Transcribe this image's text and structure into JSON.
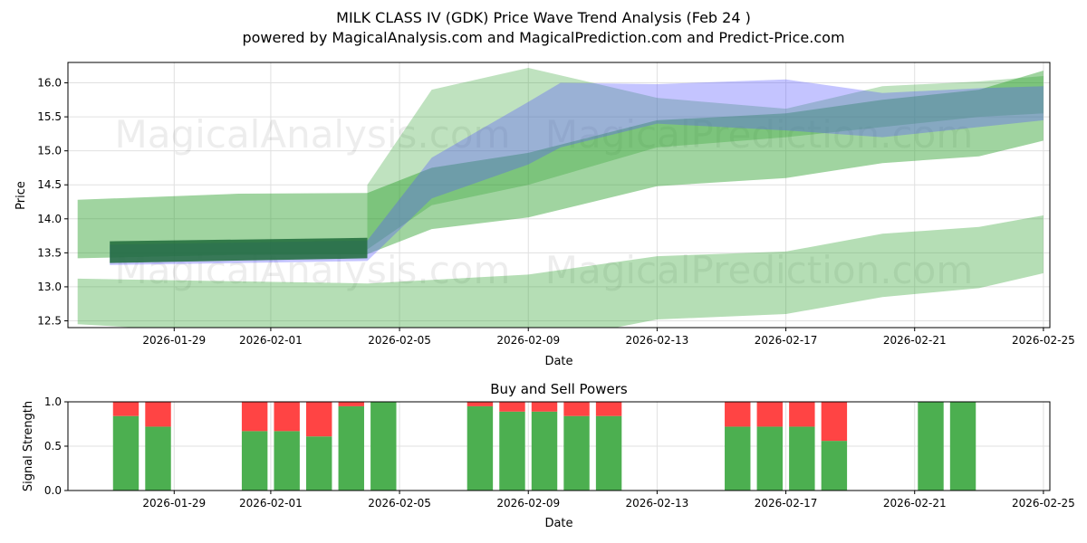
{
  "header": {
    "title": "MILK CLASS IV (GDK) Price Wave Trend Analysis (Feb 24 )",
    "subtitle": "powered by MagicalAnalysis.com and MagicalPrediction.com and Predict-Price.com"
  },
  "watermarks": [
    "MagicalAnalysis.com",
    "MagicalPrediction.com"
  ],
  "colors": {
    "green_band": "#2ca02c",
    "green_dark": "#1e6b3a",
    "blue_band": "#5555ff",
    "buy": "#4caf50",
    "sell": "#ff4444",
    "grid": "#e0e0e0"
  },
  "chart_data": [
    {
      "type": "area",
      "title": "",
      "xlabel": "Date",
      "ylabel": "Price",
      "x_range": [
        "2026-01-26",
        "2026-02-25"
      ],
      "ylim": [
        12.4,
        16.3
      ],
      "x_ticks": [
        "2026-01-29",
        "2026-02-01",
        "2026-02-05",
        "2026-02-09",
        "2026-02-13",
        "2026-02-17",
        "2026-02-21",
        "2026-02-25"
      ],
      "y_ticks": [
        12.5,
        13.0,
        13.5,
        14.0,
        14.5,
        15.0,
        15.5,
        16.0
      ],
      "grid": true,
      "series": [
        {
          "name": "lower green band",
          "color": "green",
          "opacity": 0.35,
          "x": [
            "2026-01-26",
            "2026-02-04",
            "2026-02-09",
            "2026-02-13",
            "2026-02-17",
            "2026-02-20",
            "2026-02-23",
            "2026-02-25"
          ],
          "upper": [
            13.12,
            13.05,
            13.18,
            13.45,
            13.52,
            13.78,
            13.88,
            14.05
          ],
          "lower": [
            12.45,
            12.2,
            12.15,
            12.52,
            12.6,
            12.85,
            12.98,
            13.2
          ]
        },
        {
          "name": "main green band",
          "color": "green",
          "opacity": 0.45,
          "x": [
            "2026-01-26",
            "2026-01-31",
            "2026-02-04",
            "2026-02-06",
            "2026-02-09",
            "2026-02-13",
            "2026-02-17",
            "2026-02-20",
            "2026-02-23",
            "2026-02-25"
          ],
          "upper": [
            14.28,
            14.37,
            14.38,
            14.75,
            14.97,
            15.45,
            15.55,
            15.75,
            15.9,
            16.18
          ],
          "lower": [
            13.42,
            13.47,
            13.48,
            13.85,
            14.02,
            14.48,
            14.6,
            14.82,
            14.92,
            15.15
          ]
        },
        {
          "name": "upper green band",
          "color": "green",
          "opacity": 0.3,
          "x": [
            "2026-02-04",
            "2026-02-06",
            "2026-02-09",
            "2026-02-13",
            "2026-02-17",
            "2026-02-20",
            "2026-02-23",
            "2026-02-25"
          ],
          "upper": [
            14.5,
            15.9,
            16.22,
            15.78,
            15.62,
            15.95,
            16.02,
            16.1
          ],
          "lower": [
            13.55,
            14.2,
            14.5,
            15.05,
            15.2,
            15.35,
            15.5,
            15.55
          ]
        },
        {
          "name": "blue wave band",
          "color": "blue",
          "opacity": 0.35,
          "x": [
            "2026-01-27",
            "2026-02-04",
            "2026-02-06",
            "2026-02-09",
            "2026-02-10",
            "2026-02-13",
            "2026-02-17",
            "2026-02-20",
            "2026-02-23",
            "2026-02-25"
          ],
          "upper": [
            13.62,
            13.68,
            14.9,
            15.72,
            16.0,
            15.98,
            16.05,
            15.85,
            15.92,
            15.95
          ],
          "lower": [
            13.32,
            13.38,
            14.3,
            14.8,
            15.05,
            15.4,
            15.3,
            15.2,
            15.35,
            15.45
          ]
        },
        {
          "name": "dark core band",
          "color": "dark green",
          "opacity": 0.85,
          "x": [
            "2026-01-27",
            "2026-02-04"
          ],
          "upper": [
            13.67,
            13.72
          ],
          "lower": [
            13.35,
            13.42
          ]
        }
      ]
    },
    {
      "type": "bar",
      "title": "Buy and Sell Powers",
      "xlabel": "Date",
      "ylabel": "Signal Strength",
      "ylim": [
        0.0,
        1.0
      ],
      "y_ticks": [
        0.0,
        0.5,
        1.0
      ],
      "x_ticks": [
        "2026-01-29",
        "2026-02-01",
        "2026-02-05",
        "2026-02-09",
        "2026-02-13",
        "2026-02-17",
        "2026-02-21",
        "2026-02-25"
      ],
      "grid": true,
      "categories": [
        "2026-01-28",
        "2026-01-29",
        "2026-02-01",
        "2026-02-02",
        "2026-02-03",
        "2026-02-04",
        "2026-02-05",
        "2026-02-08",
        "2026-02-09",
        "2026-02-10",
        "2026-02-11",
        "2026-02-12",
        "2026-02-16",
        "2026-02-17",
        "2026-02-18",
        "2026-02-19",
        "2026-02-22",
        "2026-02-23"
      ],
      "series": [
        {
          "name": "Buy",
          "color": "green",
          "values": [
            0.84,
            0.72,
            0.67,
            0.67,
            0.61,
            0.95,
            1.0,
            0.95,
            0.89,
            0.89,
            0.84,
            0.84,
            0.72,
            0.72,
            0.72,
            0.56,
            1.0,
            1.0
          ]
        },
        {
          "name": "Sell",
          "color": "red",
          "values": [
            0.16,
            0.28,
            0.33,
            0.33,
            0.39,
            0.05,
            0.0,
            0.05,
            0.11,
            0.11,
            0.16,
            0.16,
            0.28,
            0.28,
            0.28,
            0.44,
            0.0,
            0.0
          ]
        }
      ]
    }
  ]
}
